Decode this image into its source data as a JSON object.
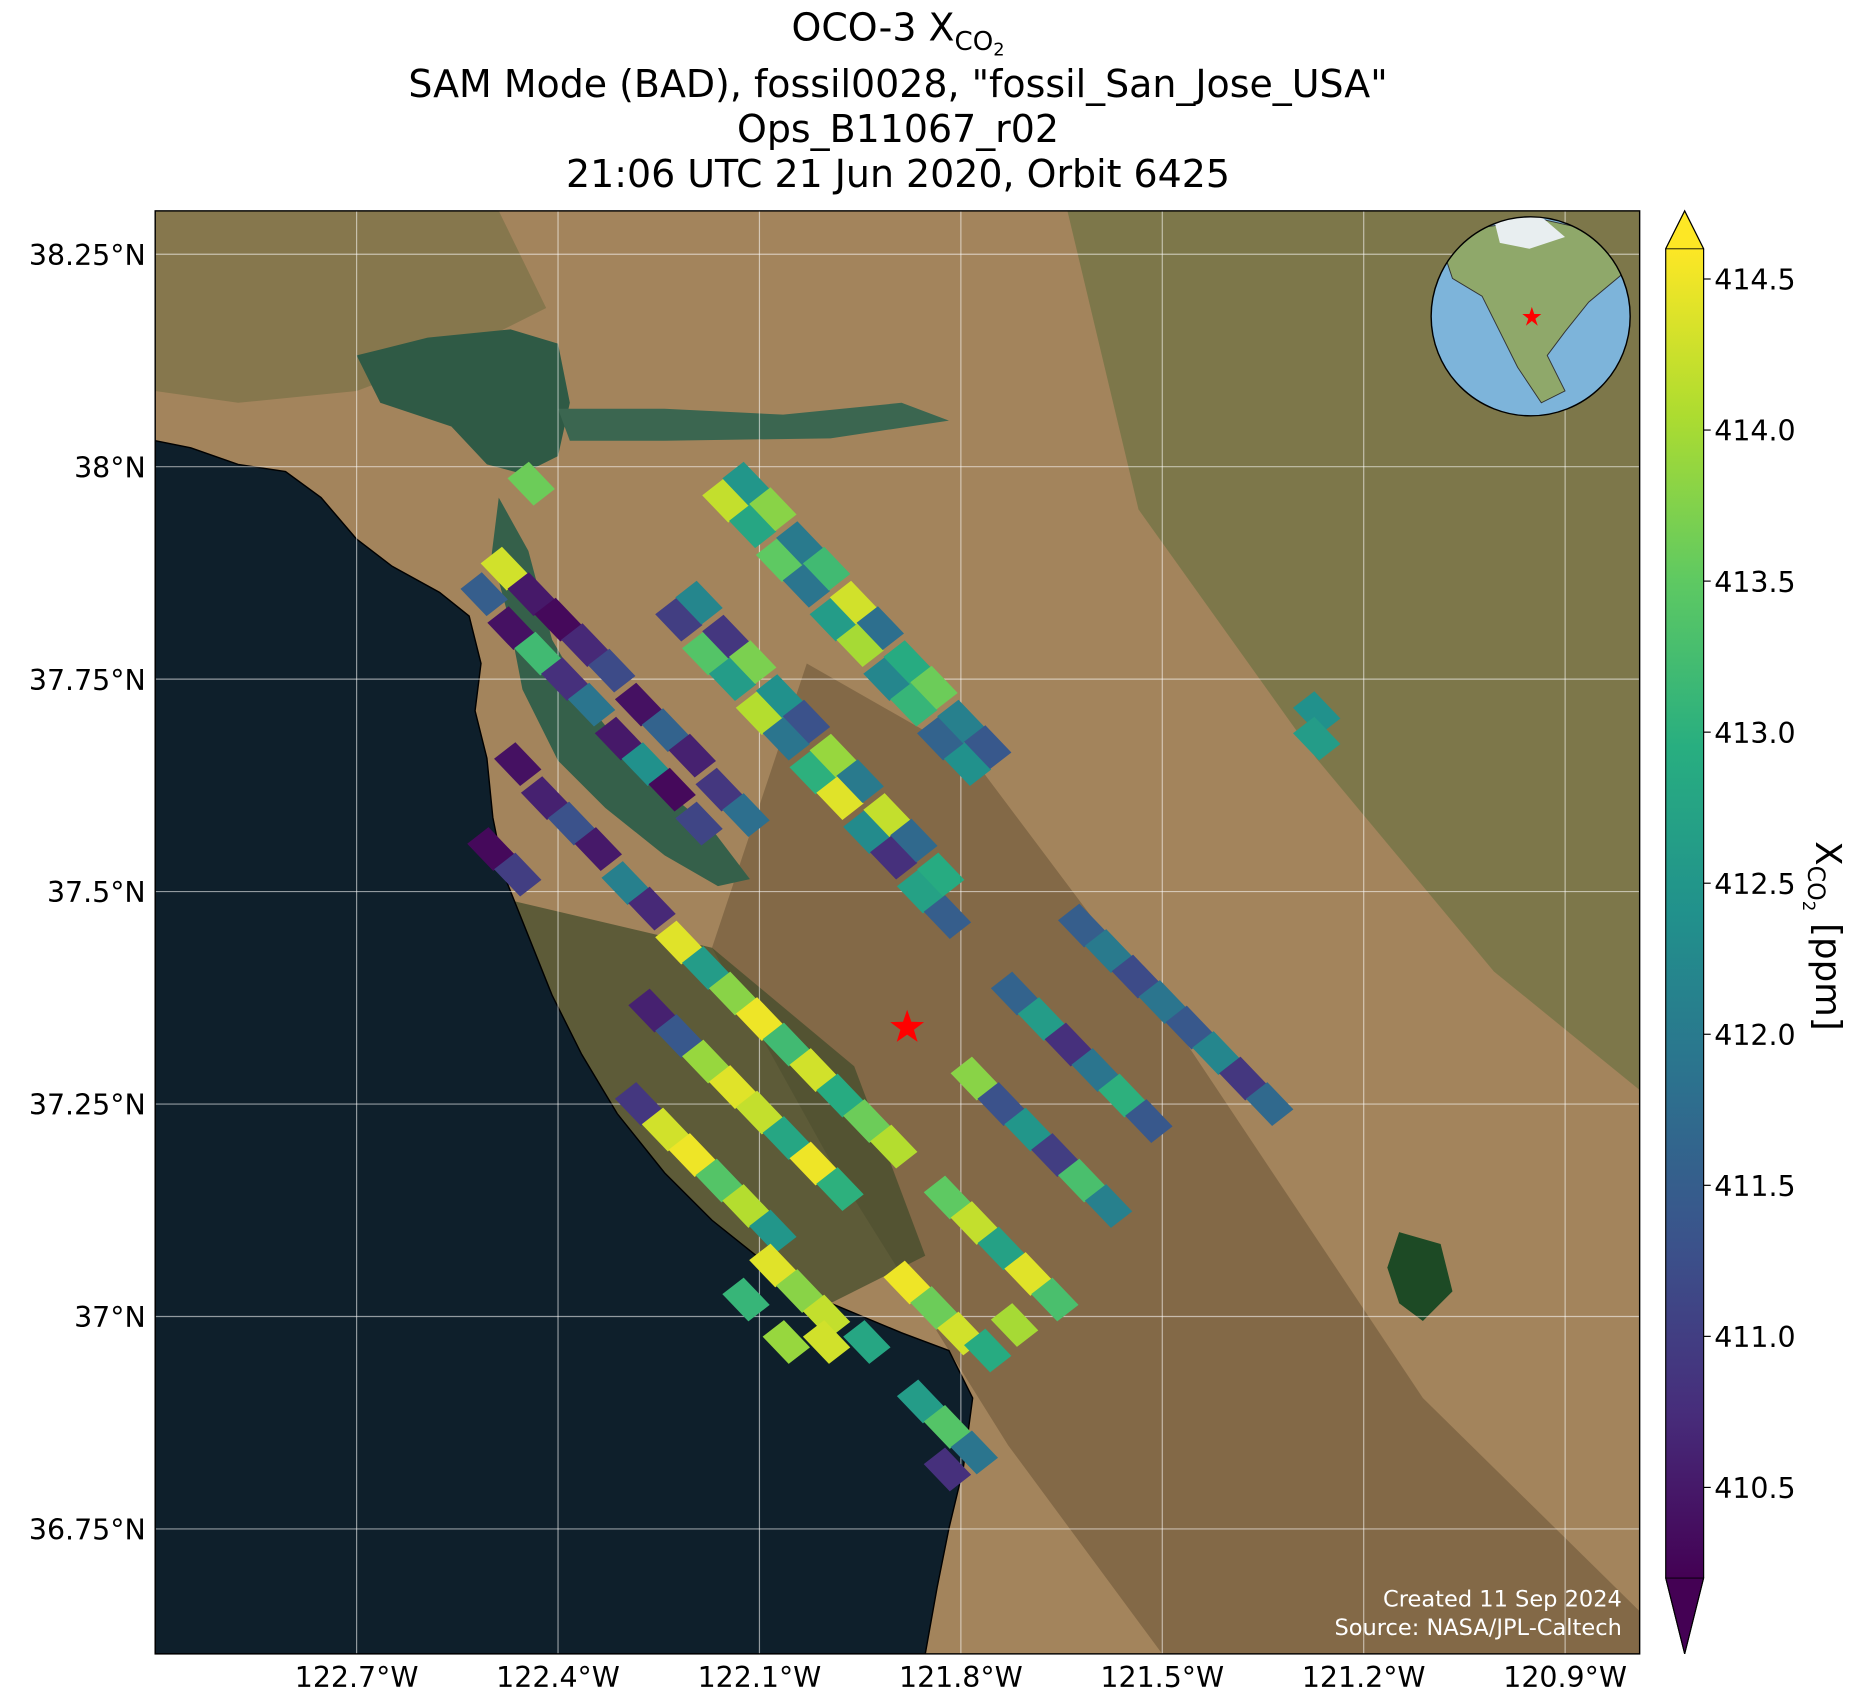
{
  "chart_data": {
    "type": "map",
    "title": {
      "text": "OCO-3 X",
      "subscript": "CO",
      "subsubscript": "2"
    },
    "subtitles": [
      "SAM Mode (BAD), fossil0028, \"fossil_San_Jose_USA\"",
      "Ops_B11067_r02",
      "21:06 UTC 21 Jun 2020, Orbit 6425"
    ],
    "xlim": [
      -123.0,
      -120.789
    ],
    "ylim": [
      36.603,
      38.301
    ],
    "xticks": [
      {
        "value": -122.7,
        "label": "122.7°W"
      },
      {
        "value": -122.4,
        "label": "122.4°W"
      },
      {
        "value": -122.1,
        "label": "122.1°W"
      },
      {
        "value": -121.8,
        "label": "121.8°W"
      },
      {
        "value": -121.5,
        "label": "121.5°W"
      },
      {
        "value": -121.2,
        "label": "121.2°W"
      },
      {
        "value": -120.9,
        "label": "120.9°W"
      }
    ],
    "yticks": [
      {
        "value": 36.75,
        "label": "36.75°N"
      },
      {
        "value": 37,
        "label": "37°N"
      },
      {
        "value": 37.25,
        "label": "37.25°N"
      },
      {
        "value": 37.5,
        "label": "37.5°N"
      },
      {
        "value": 37.75,
        "label": "37.75°N"
      },
      {
        "value": 38,
        "label": "38°N"
      },
      {
        "value": 38.25,
        "label": "38.25°N"
      }
    ],
    "grid": true,
    "colormap": "viridis",
    "footprints": {
      "x": [
        -122.15,
        -122.11,
        -122.07,
        -122.03,
        -121.99,
        -121.95,
        -121.91,
        -121.87,
        -121.83,
        -121.79,
        -122.12,
        -122.08,
        -122.04,
        -122.0,
        -121.96,
        -121.92,
        -121.88,
        -121.84,
        -121.8,
        -121.76,
        -122.22,
        -122.18,
        -122.14,
        -122.1,
        -122.06,
        -122.02,
        -121.98,
        -121.94,
        -121.9,
        -121.86,
        -121.82,
        -122.19,
        -122.15,
        -122.11,
        -122.07,
        -122.03,
        -121.99,
        -121.95,
        -121.91,
        -121.87,
        -121.83,
        -122.48,
        -122.44,
        -122.4,
        -122.36,
        -122.32,
        -122.28,
        -122.24,
        -122.2,
        -122.16,
        -122.12,
        -122.51,
        -122.47,
        -122.43,
        -122.39,
        -122.35,
        -122.31,
        -122.27,
        -122.23,
        -122.19,
        -122.46,
        -122.42,
        -122.38,
        -122.34,
        -122.3,
        -122.26,
        -122.5,
        -122.46,
        -122.22,
        -122.18,
        -122.14,
        -122.1,
        -122.06,
        -122.02,
        -121.98,
        -121.94,
        -121.9,
        -122.26,
        -122.22,
        -122.18,
        -122.14,
        -122.1,
        -122.06,
        -122.02,
        -121.98,
        -122.28,
        -122.24,
        -122.2,
        -122.16,
        -122.12,
        -122.08,
        -122.08,
        -122.04,
        -122.0,
        -122.12,
        -121.62,
        -121.58,
        -121.54,
        -121.5,
        -121.46,
        -121.42,
        -121.38,
        -121.34,
        -121.78,
        -121.74,
        -121.7,
        -121.66,
        -121.62,
        -121.58,
        -121.72,
        -121.68,
        -121.64,
        -121.6,
        -121.56,
        -121.52,
        -121.82,
        -121.78,
        -121.74,
        -121.7,
        -121.66,
        -121.88,
        -121.84,
        -121.8,
        -121.76,
        -121.72,
        -121.86,
        -121.82,
        -121.78,
        -121.82,
        -122.06,
        -122.0,
        -121.94,
        -121.27,
        -121.27,
        -122.44
      ],
      "y": [
        37.96,
        37.93,
        37.89,
        37.86,
        37.82,
        37.79,
        37.75,
        37.72,
        37.68,
        37.65,
        37.98,
        37.95,
        37.91,
        37.88,
        37.84,
        37.81,
        37.77,
        37.74,
        37.7,
        37.67,
        37.82,
        37.78,
        37.75,
        37.71,
        37.68,
        37.64,
        37.61,
        37.57,
        37.54,
        37.5,
        37.47,
        37.84,
        37.8,
        37.77,
        37.73,
        37.7,
        37.66,
        37.63,
        37.59,
        37.56,
        37.52,
        37.88,
        37.85,
        37.82,
        37.79,
        37.76,
        37.72,
        37.69,
        37.66,
        37.62,
        37.59,
        37.85,
        37.81,
        37.78,
        37.75,
        37.72,
        37.68,
        37.65,
        37.62,
        37.58,
        37.65,
        37.61,
        37.58,
        37.55,
        37.51,
        37.48,
        37.55,
        37.52,
        37.44,
        37.41,
        37.38,
        37.35,
        37.32,
        37.29,
        37.26,
        37.23,
        37.2,
        37.36,
        37.33,
        37.3,
        37.27,
        37.24,
        37.21,
        37.18,
        37.15,
        37.25,
        37.22,
        37.19,
        37.16,
        37.13,
        37.1,
        37.06,
        37.03,
        37.0,
        37.02,
        37.46,
        37.43,
        37.4,
        37.37,
        37.34,
        37.31,
        37.28,
        37.25,
        37.28,
        37.25,
        37.22,
        37.19,
        37.16,
        37.13,
        37.38,
        37.35,
        37.32,
        37.29,
        37.26,
        37.23,
        37.14,
        37.11,
        37.08,
        37.05,
        37.02,
        37.04,
        37.01,
        36.98,
        36.96,
        36.99,
        36.9,
        36.87,
        36.84,
        36.82,
        36.97,
        36.97,
        36.97,
        37.71,
        37.68,
        37.98
      ],
      "values": [
        414.2,
        412.8,
        413.5,
        411.9,
        412.6,
        414.0,
        412.2,
        413.1,
        411.6,
        412.4,
        412.5,
        413.8,
        412.0,
        413.2,
        414.3,
        411.8,
        412.9,
        413.6,
        412.1,
        411.4,
        411.0,
        413.4,
        412.6,
        414.1,
        411.9,
        413.0,
        414.4,
        412.3,
        410.8,
        412.7,
        411.5,
        412.2,
        410.9,
        413.7,
        412.4,
        411.3,
        413.9,
        412.0,
        414.2,
        411.7,
        412.9,
        414.3,
        410.5,
        410.3,
        410.7,
        411.2,
        410.4,
        411.6,
        410.6,
        410.9,
        411.8,
        411.5,
        410.4,
        413.2,
        410.8,
        411.9,
        410.5,
        412.4,
        410.3,
        411.1,
        410.4,
        410.6,
        411.3,
        410.5,
        412.1,
        410.7,
        410.3,
        411.0,
        414.4,
        412.6,
        413.8,
        414.5,
        413.2,
        414.3,
        412.9,
        413.6,
        414.1,
        410.6,
        411.4,
        413.9,
        414.4,
        414.2,
        412.8,
        414.5,
        413.0,
        410.9,
        414.3,
        414.5,
        413.4,
        414.1,
        412.5,
        414.4,
        413.8,
        414.2,
        413.1,
        411.5,
        412.0,
        411.2,
        411.9,
        411.4,
        412.2,
        410.9,
        411.7,
        413.8,
        411.3,
        412.5,
        411.0,
        413.3,
        412.1,
        411.6,
        412.6,
        410.8,
        411.9,
        413.0,
        411.4,
        413.5,
        414.2,
        412.7,
        414.4,
        413.3,
        414.5,
        413.6,
        414.3,
        412.9,
        414.0,
        412.6,
        413.4,
        411.9,
        410.8,
        413.9,
        414.3,
        412.8,
        412.4,
        412.6,
        413.6
      ]
    },
    "target": {
      "x": -121.88,
      "y": 37.34,
      "color": "#ff0000"
    },
    "colorbar": {
      "lim": [
        410.2,
        414.6
      ],
      "ticks": [
        410.5,
        {
          "value": 411,
          "label": "411.0"
        },
        411.5,
        {
          "value": 412,
          "label": "412.0"
        },
        412.5,
        {
          "value": 413,
          "label": "413.0"
        },
        413.5,
        {
          "value": 414,
          "label": "414.0"
        },
        414.5
      ],
      "label": {
        "text": "X",
        "subscript": "CO",
        "subsubscript": "2",
        "units": "[ppm]"
      }
    },
    "annotations": [
      "Created 11 Sep 2024",
      "Source: NASA/JPL-Caltech"
    ]
  }
}
